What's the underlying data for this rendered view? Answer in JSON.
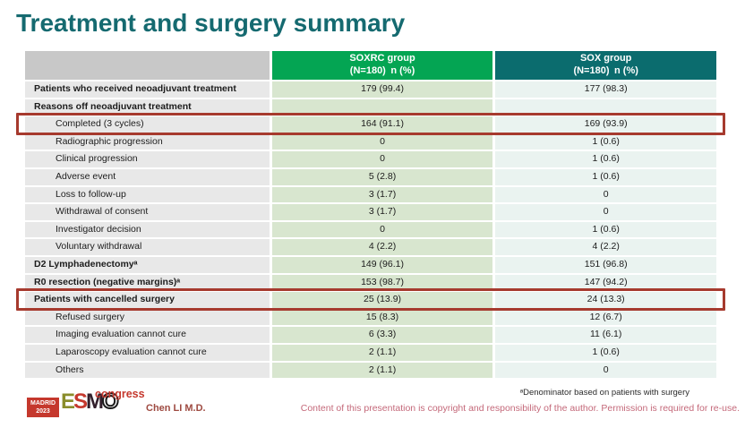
{
  "slide": {
    "title": "Treatment and surgery summary",
    "presenter": "Chen LI M.D.",
    "footnote": "ᵃDenominator based on patients with surgery",
    "copyright": "Content of this presentation is copyright and responsibility of the author. Permission is required for re-use."
  },
  "logo": {
    "city": "MADRID",
    "year": "2023",
    "letters": [
      "E",
      "S",
      "M",
      "O"
    ],
    "congress": "congress"
  },
  "table": {
    "columns": [
      {
        "name": "SOXRC group",
        "sub": "(N=180) n (%)"
      },
      {
        "name": "SOX group",
        "sub": "(N=180) n (%)"
      }
    ],
    "rows": [
      {
        "label": "Patients who received neoadjuvant treatment",
        "soxrc": "179 (99.4)",
        "sox": "177 (98.3)",
        "bold": true,
        "indent": false,
        "highlight": false
      },
      {
        "label": "Reasons off neoadjuvant treatment",
        "soxrc": "",
        "sox": "",
        "bold": true,
        "indent": false,
        "highlight": false
      },
      {
        "label": "Completed (3 cycles)",
        "soxrc": "164 (91.1)",
        "sox": "169 (93.9)",
        "bold": false,
        "indent": true,
        "highlight": true
      },
      {
        "label": "Radiographic progression",
        "soxrc": "0",
        "sox": "1 (0.6)",
        "bold": false,
        "indent": true,
        "highlight": false
      },
      {
        "label": "Clinical progression",
        "soxrc": "0",
        "sox": "1 (0.6)",
        "bold": false,
        "indent": true,
        "highlight": false
      },
      {
        "label": "Adverse event",
        "soxrc": "5 (2.8)",
        "sox": "1 (0.6)",
        "bold": false,
        "indent": true,
        "highlight": false
      },
      {
        "label": "Loss to follow-up",
        "soxrc": "3 (1.7)",
        "sox": "0",
        "bold": false,
        "indent": true,
        "highlight": false
      },
      {
        "label": "Withdrawal of consent",
        "soxrc": "3 (1.7)",
        "sox": "0",
        "bold": false,
        "indent": true,
        "highlight": false
      },
      {
        "label": "Investigator decision",
        "soxrc": "0",
        "sox": "1 (0.6)",
        "bold": false,
        "indent": true,
        "highlight": false
      },
      {
        "label": "Voluntary withdrawal",
        "soxrc": "4 (2.2)",
        "sox": "4 (2.2)",
        "bold": false,
        "indent": true,
        "highlight": false
      },
      {
        "label": "D2 Lymphadenectomyᵃ",
        "soxrc": "149 (96.1)",
        "sox": "151 (96.8)",
        "bold": true,
        "indent": false,
        "highlight": false
      },
      {
        "label": "R0 resection (negative margins)ᵃ",
        "soxrc": "153 (98.7)",
        "sox": "147 (94.2)",
        "bold": true,
        "indent": false,
        "highlight": false
      },
      {
        "label": "Patients with cancelled surgery",
        "soxrc": "25 (13.9)",
        "sox": "24 (13.3)",
        "bold": true,
        "indent": false,
        "highlight": true
      },
      {
        "label": "Refused surgery",
        "soxrc": "15 (8.3)",
        "sox": "12 (6.7)",
        "bold": false,
        "indent": true,
        "highlight": false
      },
      {
        "label": "Imaging evaluation cannot cure",
        "soxrc": "6 (3.3)",
        "sox": "11 (6.1)",
        "bold": false,
        "indent": true,
        "highlight": false
      },
      {
        "label": "Laparoscopy evaluation cannot cure",
        "soxrc": "2 (1.1)",
        "sox": "1 (0.6)",
        "bold": false,
        "indent": true,
        "highlight": false
      },
      {
        "label": "Others",
        "soxrc": "2 (1.1)",
        "sox": "0",
        "bold": false,
        "indent": true,
        "highlight": false
      }
    ]
  },
  "colors": {
    "title": "#156a70",
    "header_soxrc": "#04a553",
    "header_sox": "#0b6c6e",
    "header_label_bg": "#c8c8c8",
    "cell_label_bg": "#e8e8e8",
    "cell_soxrc_bg": "#d8e6cf",
    "cell_sox_bg": "#eaf3f0",
    "highlight_border": "#a63a2e",
    "copyright_text": "#c4697a",
    "logo_red": "#c5382d"
  }
}
